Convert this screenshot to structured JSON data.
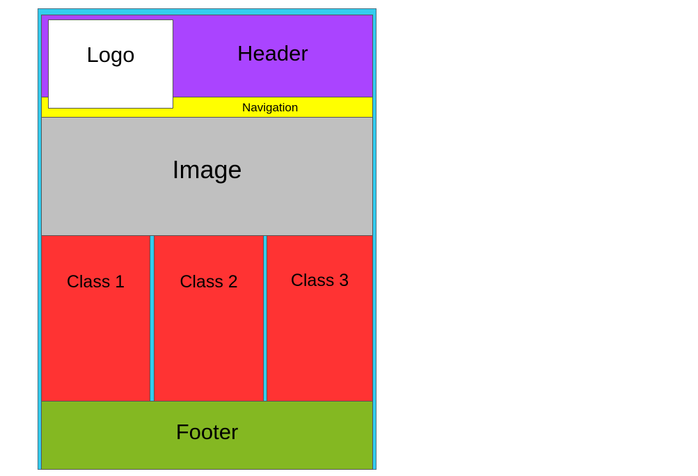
{
  "colors": {
    "frame": "#33ccee",
    "header": "#aa44ff",
    "navigation": "#ffff00",
    "logo": "#ffffff",
    "image": "#c0c0c0",
    "class": "#ff3333",
    "footer": "#84b822"
  },
  "header": {
    "label": "Header"
  },
  "logo": {
    "label": "Logo"
  },
  "navigation": {
    "label": "Navigation"
  },
  "image": {
    "label": "Image"
  },
  "classes": [
    {
      "label": "Class 1"
    },
    {
      "label": "Class 2"
    },
    {
      "label": "Class 3"
    }
  ],
  "footer": {
    "label": "Footer"
  }
}
